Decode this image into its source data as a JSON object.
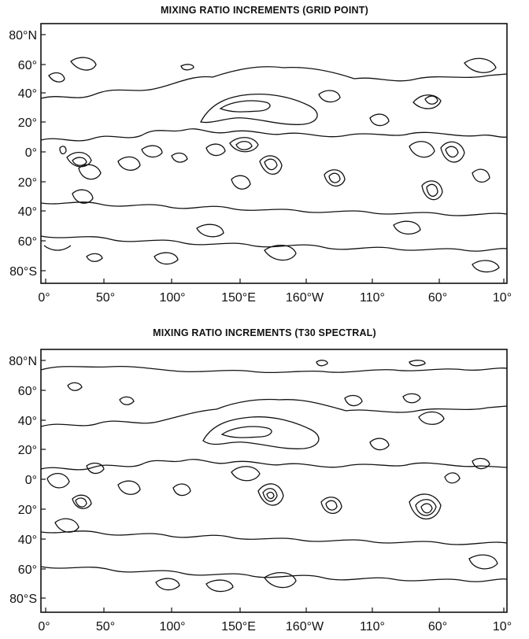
{
  "panels": [
    {
      "title": "MIXING RATIO INCREMENTS (GRID POINT)",
      "y_labels": [
        "80°N",
        "60°",
        "40°",
        "20°",
        "0°",
        "20°",
        "40°",
        "60°",
        "80°S"
      ],
      "x_labels": [
        "0°",
        "50°",
        "100°",
        "150°E",
        "160°W",
        "110°",
        "60°",
        "10°"
      ]
    },
    {
      "title": "MIXING RATIO INCREMENTS (T30 SPECTRAL)",
      "y_labels": [
        "80°N",
        "60°",
        "40°",
        "20°",
        "0°",
        "20°",
        "40°",
        "60°",
        "80°S"
      ],
      "x_labels": [
        "0°",
        "50°",
        "100°",
        "150°E",
        "160°W",
        "110°",
        "60°",
        "10°"
      ]
    }
  ]
}
